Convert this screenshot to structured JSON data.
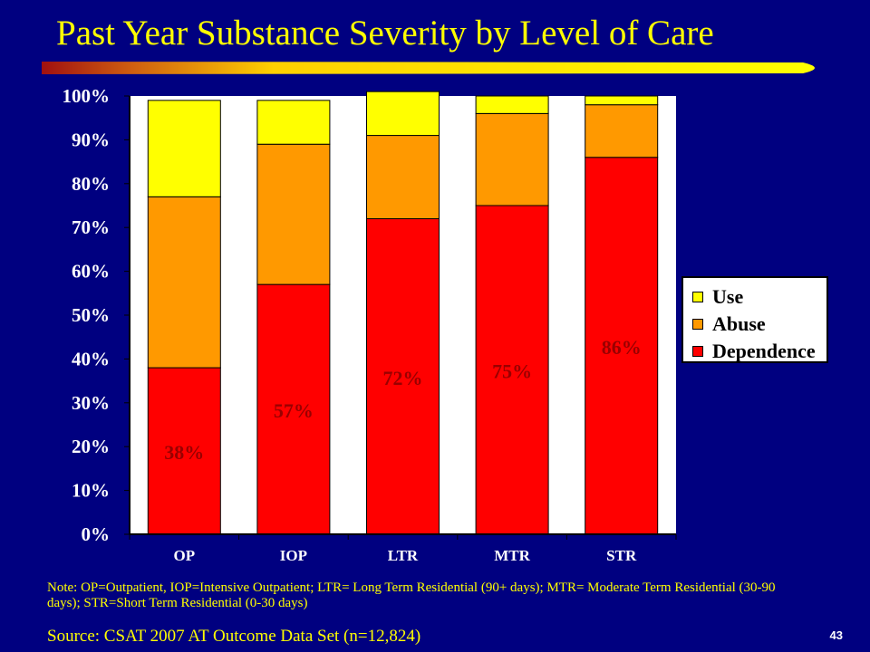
{
  "slide": {
    "title": "Past Year Substance Severity by Level of Care",
    "note": "Note: OP=Outpatient, IOP=Intensive Outpatient; LTR= Long Term Residential (90+ days); MTR= Moderate Term Residential (30-90 days); STR=Short Term Residential (0-30 days)",
    "source": "Source:  CSAT 2007 AT Outcome Data Set (n=12,824)",
    "slide_number": "43"
  },
  "colors": {
    "background": "#000080",
    "title": "#FFFF00",
    "plot_area": "#FFFFFF",
    "dependence": "#FF0000",
    "abuse": "#FF9900",
    "use": "#FFFF00",
    "data_label": "#990000"
  },
  "chart_data": {
    "type": "bar",
    "stacked": true,
    "categories": [
      "OP",
      "IOP",
      "LTR",
      "MTR",
      "STR"
    ],
    "series": [
      {
        "name": "Dependence",
        "values": [
          38,
          57,
          72,
          75,
          86
        ],
        "color": "#FF0000"
      },
      {
        "name": "Abuse",
        "values": [
          39,
          32,
          19,
          21,
          12
        ],
        "color": "#FF9900"
      },
      {
        "name": "Use",
        "values": [
          22,
          10,
          10,
          4,
          2
        ],
        "color": "#FFFF00"
      }
    ],
    "data_labels": [
      "38%",
      "57%",
      "72%",
      "75%",
      "86%"
    ],
    "ylim": [
      0,
      100
    ],
    "yticks": [
      "0%",
      "10%",
      "20%",
      "30%",
      "40%",
      "50%",
      "60%",
      "70%",
      "80%",
      "90%",
      "100%"
    ],
    "legend": {
      "position": "right",
      "entries": [
        "Use",
        "Abuse",
        "Dependence"
      ]
    },
    "grid": false
  }
}
